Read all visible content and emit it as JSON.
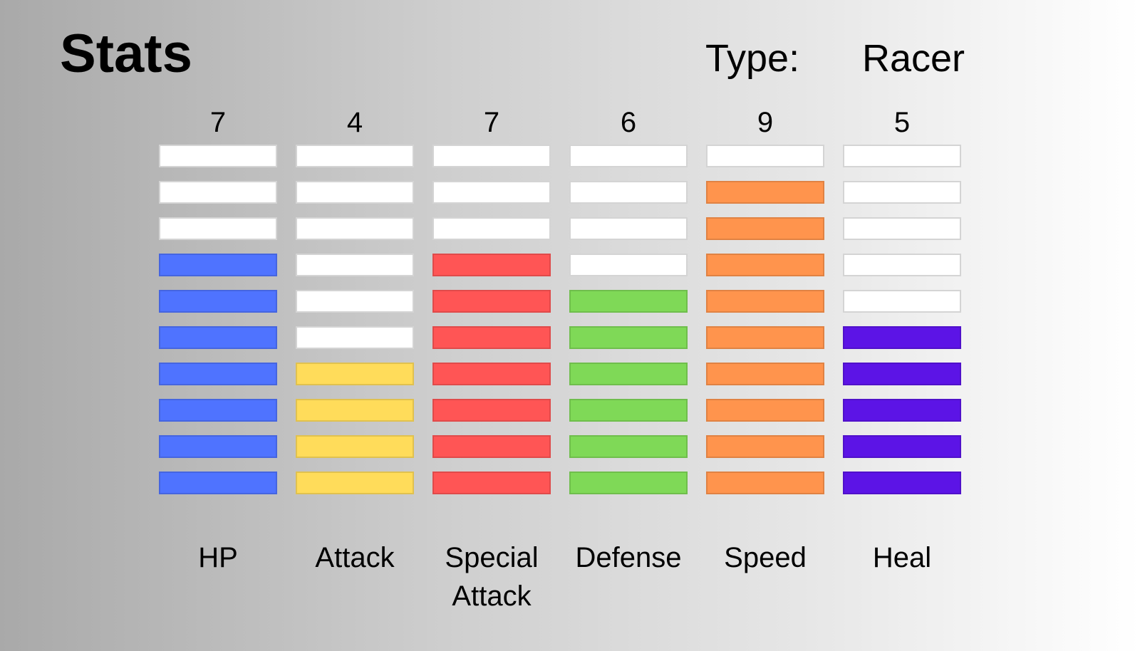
{
  "title": "Stats",
  "type_label": "Type:",
  "type_value": "Racer",
  "max_level": 10,
  "empty_color": "#ffffff",
  "stats": [
    {
      "name": "HP",
      "value": "7",
      "level": 7,
      "color": "#4f73ff"
    },
    {
      "name": "Attack",
      "value": "4",
      "level": 4,
      "color": "#ffdc5a"
    },
    {
      "name": "Special\nAttack",
      "value": "7",
      "level": 7,
      "color": "#ff5555"
    },
    {
      "name": "Defense",
      "value": "6",
      "level": 6,
      "color": "#7fd957"
    },
    {
      "name": "Speed",
      "value": "9",
      "level": 9,
      "color": "#ff944d"
    },
    {
      "name": "Heal",
      "value": "5",
      "level": 5,
      "color": "#5c14e6"
    }
  ]
}
